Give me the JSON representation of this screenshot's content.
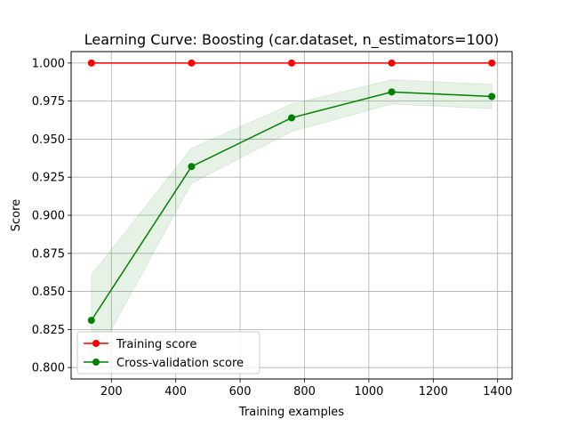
{
  "chart_data": {
    "type": "line",
    "title": "Learning Curve: Boosting (car.dataset, n_estimators=100)",
    "xlabel": "Training examples",
    "ylabel": "Score",
    "xlim": [
      75,
      1445
    ],
    "ylim": [
      0.7925,
      1.0075
    ],
    "xticks": [
      200,
      400,
      600,
      800,
      1000,
      1200,
      1400
    ],
    "xtick_labels": [
      "200",
      "400",
      "600",
      "800",
      "1000",
      "1200",
      "1400"
    ],
    "yticks": [
      0.8,
      0.825,
      0.85,
      0.875,
      0.9,
      0.925,
      0.95,
      0.975,
      1.0
    ],
    "ytick_labels": [
      "0.800",
      "0.825",
      "0.850",
      "0.875",
      "0.900",
      "0.925",
      "0.950",
      "0.975",
      "1.000"
    ],
    "grid": true,
    "legend_position": "lower-left",
    "x": [
      138,
      449,
      760,
      1071,
      1382
    ],
    "series": [
      {
        "name": "Training score",
        "color": "#ff0000",
        "values": [
          1.0,
          1.0,
          1.0,
          1.0,
          1.0
        ],
        "band_lower": [
          1.0,
          1.0,
          1.0,
          1.0,
          1.0
        ],
        "band_upper": [
          1.0,
          1.0,
          1.0,
          1.0,
          1.0
        ]
      },
      {
        "name": "Cross-validation score",
        "color": "#008000",
        "values": [
          0.831,
          0.932,
          0.964,
          0.981,
          0.978
        ],
        "band_lower": [
          0.801,
          0.921,
          0.955,
          0.973,
          0.97
        ],
        "band_upper": [
          0.861,
          0.944,
          0.973,
          0.989,
          0.986
        ]
      }
    ]
  }
}
